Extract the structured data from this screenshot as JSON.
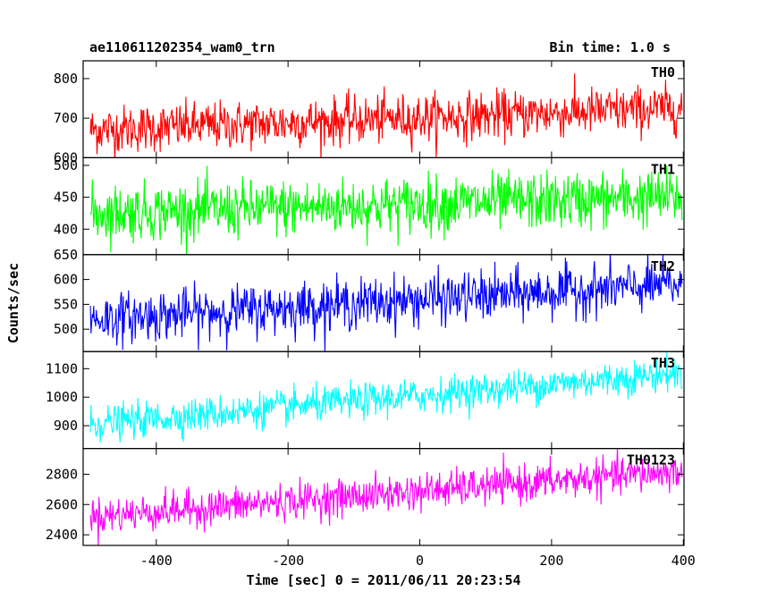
{
  "chart_data": {
    "type": "line",
    "title": "ae110611202354_wam0_trn",
    "bin_time": "Bin time: 1.0 s",
    "xlabel": "Time [sec] 0 = 2011/06/11 20:23:54",
    "ylabel": "Counts/sec",
    "xlim": [
      -511,
      401
    ],
    "x_ticks": [
      -400,
      -200,
      0,
      200,
      400
    ],
    "grid": false,
    "panels": [
      {
        "name": "TH0",
        "color": "#ff0000",
        "ylim": [
          600,
          845
        ],
        "y_ticks": [
          600,
          700,
          800
        ],
        "trend_start": 670,
        "trend_end": 725,
        "noise": 30
      },
      {
        "name": "TH1",
        "color": "#00ff00",
        "ylim": [
          360,
          512
        ],
        "y_ticks": [
          400,
          450,
          500
        ],
        "trend_start": 425,
        "trend_end": 450,
        "noise": 22
      },
      {
        "name": "TH2",
        "color": "#0000ff",
        "ylim": [
          455,
          650
        ],
        "y_ticks": [
          500,
          550,
          600,
          650
        ],
        "trend_start": 520,
        "trend_end": 590,
        "noise": 25
      },
      {
        "name": "TH3",
        "color": "#00ffff",
        "ylim": [
          820,
          1160
        ],
        "y_ticks": [
          900,
          1000,
          1100
        ],
        "trend_start": 905,
        "trend_end": 1085,
        "noise": 30
      },
      {
        "name": "TH0123",
        "color": "#ff00ff",
        "ylim": [
          2330,
          2970
        ],
        "y_ticks": [
          2400,
          2600,
          2800
        ],
        "trend_start": 2520,
        "trend_end": 2820,
        "noise": 60
      }
    ],
    "x_start": -500,
    "x_end": 398,
    "x_step": 1
  }
}
